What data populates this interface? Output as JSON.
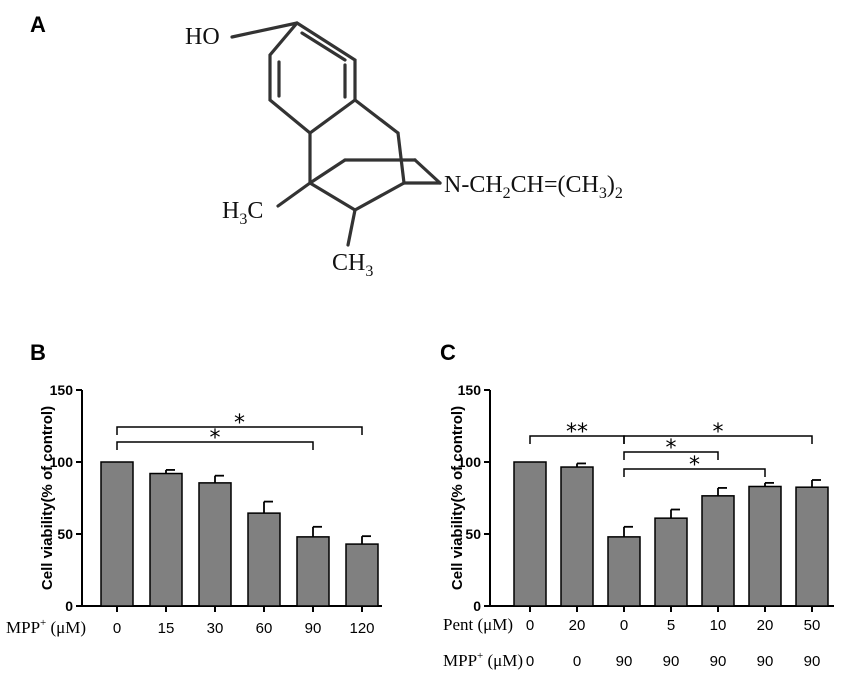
{
  "panels": {
    "a": "A",
    "b": "B",
    "c": "C"
  },
  "structure": {
    "ho": "HO",
    "h3c": "H",
    "h3c_sub": "3",
    "h3c_tail": "C",
    "ch3": "CH",
    "ch3_sub": "3",
    "n_group": "N-CH",
    "n_sub1": "2",
    "n_mid": "CH=(CH",
    "n_sub2": "3",
    "n_close": ")",
    "n_sub3": "2"
  },
  "chart_data": [
    {
      "type": "bar",
      "panel": "B",
      "ylabel": "Cell viability(% of control)",
      "ylim": [
        0,
        150
      ],
      "yticks": [
        0,
        50,
        100,
        150
      ],
      "row_labels": [
        {
          "main": "MPP",
          "sup": "+",
          "unit": "(μM)"
        }
      ],
      "categories": [
        "0",
        "15",
        "30",
        "60",
        "90",
        "120"
      ],
      "values": [
        100,
        92,
        85.5,
        64.5,
        48,
        43
      ],
      "errors": [
        0,
        2.5,
        5,
        8,
        7,
        5.5
      ],
      "significance": [
        {
          "from": 0,
          "to": 4,
          "label": "*"
        },
        {
          "from": 0,
          "to": 5,
          "label": "*"
        }
      ]
    },
    {
      "type": "bar",
      "panel": "C",
      "ylabel": "Cell viability(% of control)",
      "ylim": [
        0,
        150
      ],
      "yticks": [
        0,
        50,
        100,
        150
      ],
      "row_labels": [
        {
          "main": "Pent",
          "sup": "",
          "unit": "(μM)"
        },
        {
          "main": "MPP",
          "sup": "+",
          "unit": "(μM)"
        }
      ],
      "categories": [
        "0",
        "20",
        "0",
        "5",
        "10",
        "20",
        "50"
      ],
      "categories_row2": [
        "0",
        "0",
        "90",
        "90",
        "90",
        "90",
        "90"
      ],
      "values": [
        100,
        96.5,
        48,
        61,
        76.5,
        83,
        82.5
      ],
      "errors": [
        0,
        2.5,
        7,
        6,
        5.5,
        2.5,
        5
      ],
      "significance": [
        {
          "from": 0,
          "to": 2,
          "label": "**"
        },
        {
          "from": 2,
          "to": 4,
          "label": "*"
        },
        {
          "from": 2,
          "to": 5,
          "label": "*"
        },
        {
          "from": 2,
          "to": 6,
          "label": "*"
        }
      ]
    }
  ]
}
